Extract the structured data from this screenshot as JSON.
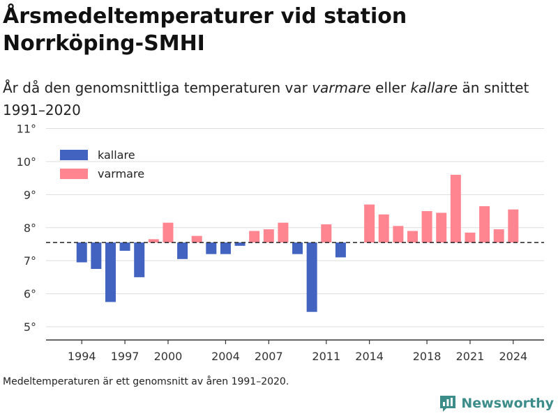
{
  "header": {
    "title": "Årsmedeltemperaturer vid station Norrköping-SMHI",
    "subtitle_pre": "År då den genomsnittliga temperaturen var ",
    "subtitle_warm": "varmare",
    "subtitle_mid": " eller ",
    "subtitle_cold": "kallare",
    "subtitle_post": " än snittet 1991–2020"
  },
  "footnote": "Medeltemperaturen är ett genomsnitt av åren 1991–2020.",
  "brand": {
    "name": "Newsworthy",
    "icon": "newsworthy-logo-icon",
    "color": "#3c8c8a"
  },
  "chart_data": {
    "type": "bar",
    "baseline": 7.55,
    "ylim": [
      4.6,
      11.2
    ],
    "yticks": [
      5,
      6,
      7,
      8,
      9,
      10,
      11
    ],
    "ytick_labels": [
      "5°",
      "6°",
      "7°",
      "8°",
      "9°",
      "10°",
      "11°"
    ],
    "xlim": [
      1992.0,
      2025.9
    ],
    "xticks": [
      1994,
      1997,
      2000,
      2004,
      2007,
      2011,
      2014,
      2018,
      2021,
      2024
    ],
    "grid": true,
    "legend_position": "top-left",
    "legend": [
      {
        "key": "cold",
        "label": "kallare",
        "color": "#4263c0"
      },
      {
        "key": "warm",
        "label": "varmare",
        "color": "#ff8590"
      }
    ],
    "categories": [
      1994,
      1995,
      1996,
      1997,
      1998,
      1999,
      2000,
      2001,
      2002,
      2003,
      2004,
      2005,
      2006,
      2007,
      2008,
      2009,
      2010,
      2011,
      2012,
      2014,
      2015,
      2016,
      2017,
      2018,
      2019,
      2020,
      2021,
      2022,
      2023,
      2024
    ],
    "values": [
      6.95,
      6.75,
      5.75,
      7.3,
      6.5,
      7.65,
      8.15,
      7.05,
      7.75,
      7.2,
      7.2,
      7.45,
      7.9,
      7.95,
      8.15,
      7.2,
      5.45,
      8.1,
      7.1,
      8.7,
      8.4,
      8.05,
      7.9,
      8.5,
      8.45,
      9.6,
      7.85,
      8.65,
      7.95,
      8.55
    ]
  }
}
